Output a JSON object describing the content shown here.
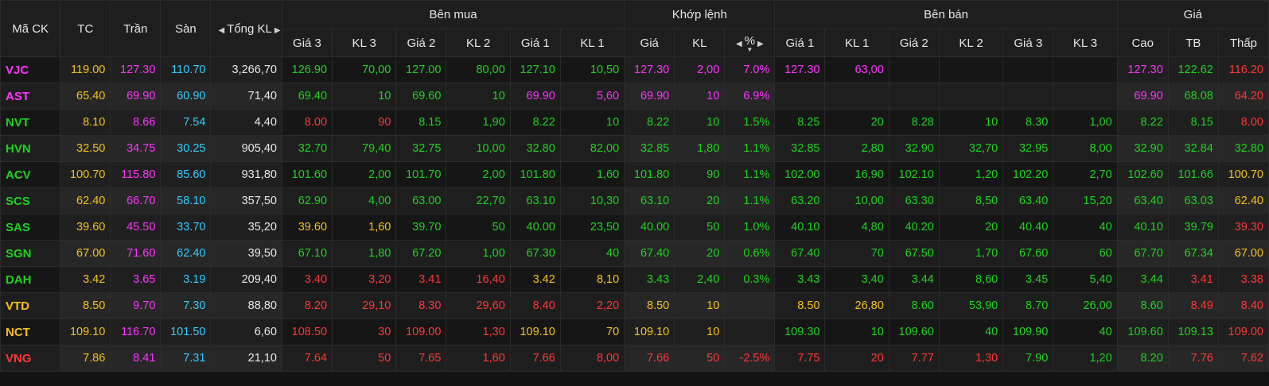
{
  "header": {
    "ma_ck": "Mã CK",
    "tc": "TC",
    "tran": "Trần",
    "san": "Sàn",
    "tong_kl": "Tổng KL",
    "ben_mua": "Bên mua",
    "khop_lenh": "Khớp lệnh",
    "ben_ban": "Bên bán",
    "gia_group": "Giá",
    "mua": [
      "Giá 3",
      "KL 3",
      "Giá 2",
      "KL 2",
      "Giá 1",
      "KL 1"
    ],
    "khop": [
      "Giá",
      "KL",
      "%"
    ],
    "ban": [
      "Giá 1",
      "KL 1",
      "Giá 2",
      "KL 2",
      "Giá 3",
      "KL 3"
    ],
    "gia": [
      "Cao",
      "TB",
      "Thấp"
    ]
  },
  "colors": {
    "up": "#1fd31f",
    "down": "#ff3737",
    "ref": "#f4c21b",
    "ceil": "#ff34ff",
    "floor": "#35cbff",
    "white": "#e8e8e8"
  },
  "rows": [
    {
      "sym": [
        "VJC",
        "ceil"
      ],
      "tc": [
        "119.00",
        "ref"
      ],
      "tran": [
        "127.30",
        "ceil"
      ],
      "san": [
        "110.70",
        "floor"
      ],
      "tkl": [
        "3,266,70",
        "white"
      ],
      "mua": [
        [
          "126.90",
          "up"
        ],
        [
          "70,00",
          "up"
        ],
        [
          "127.00",
          "up"
        ],
        [
          "80,00",
          "up"
        ],
        [
          "127.10",
          "up"
        ],
        [
          "10,50",
          "up"
        ]
      ],
      "khop": [
        [
          "127.30",
          "ceil"
        ],
        [
          "2,00",
          "ceil"
        ],
        [
          "7.0%",
          "ceil"
        ]
      ],
      "ban": [
        [
          "127.30",
          "ceil"
        ],
        [
          "63,00",
          "ceil"
        ],
        [
          "",
          ""
        ],
        [
          "",
          ""
        ],
        [
          "",
          ""
        ],
        [
          "",
          ""
        ]
      ],
      "gia": [
        [
          "127.30",
          "ceil"
        ],
        [
          "122.62",
          "up"
        ],
        [
          "116.20",
          "down"
        ]
      ]
    },
    {
      "sym": [
        "AST",
        "ceil"
      ],
      "tc": [
        "65.40",
        "ref"
      ],
      "tran": [
        "69.90",
        "ceil"
      ],
      "san": [
        "60.90",
        "floor"
      ],
      "tkl": [
        "71,40",
        "white"
      ],
      "mua": [
        [
          "69.40",
          "up"
        ],
        [
          "10",
          "up"
        ],
        [
          "69.60",
          "up"
        ],
        [
          "10",
          "up"
        ],
        [
          "69.90",
          "ceil"
        ],
        [
          "5,60",
          "ceil"
        ]
      ],
      "khop": [
        [
          "69.90",
          "ceil"
        ],
        [
          "10",
          "ceil"
        ],
        [
          "6.9%",
          "ceil"
        ]
      ],
      "ban": [
        [
          "",
          ""
        ],
        [
          "",
          ""
        ],
        [
          "",
          ""
        ],
        [
          "",
          ""
        ],
        [
          "",
          ""
        ],
        [
          "",
          ""
        ]
      ],
      "gia": [
        [
          "69.90",
          "ceil"
        ],
        [
          "68.08",
          "up"
        ],
        [
          "64.20",
          "down"
        ]
      ]
    },
    {
      "sym": [
        "NVT",
        "up"
      ],
      "tc": [
        "8.10",
        "ref"
      ],
      "tran": [
        "8.66",
        "ceil"
      ],
      "san": [
        "7.54",
        "floor"
      ],
      "tkl": [
        "4,40",
        "white"
      ],
      "mua": [
        [
          "8.00",
          "down"
        ],
        [
          "90",
          "down"
        ],
        [
          "8.15",
          "up"
        ],
        [
          "1,90",
          "up"
        ],
        [
          "8.22",
          "up"
        ],
        [
          "10",
          "up"
        ]
      ],
      "khop": [
        [
          "8.22",
          "up"
        ],
        [
          "10",
          "up"
        ],
        [
          "1.5%",
          "up"
        ]
      ],
      "ban": [
        [
          "8.25",
          "up"
        ],
        [
          "20",
          "up"
        ],
        [
          "8.28",
          "up"
        ],
        [
          "10",
          "up"
        ],
        [
          "8.30",
          "up"
        ],
        [
          "1,00",
          "up"
        ]
      ],
      "gia": [
        [
          "8.22",
          "up"
        ],
        [
          "8.15",
          "up"
        ],
        [
          "8.00",
          "down"
        ]
      ]
    },
    {
      "sym": [
        "HVN",
        "up"
      ],
      "tc": [
        "32.50",
        "ref"
      ],
      "tran": [
        "34.75",
        "ceil"
      ],
      "san": [
        "30.25",
        "floor"
      ],
      "tkl": [
        "905,40",
        "white"
      ],
      "mua": [
        [
          "32.70",
          "up"
        ],
        [
          "79,40",
          "up"
        ],
        [
          "32.75",
          "up"
        ],
        [
          "10,00",
          "up"
        ],
        [
          "32.80",
          "up"
        ],
        [
          "82,00",
          "up"
        ]
      ],
      "khop": [
        [
          "32.85",
          "up"
        ],
        [
          "1,80",
          "up"
        ],
        [
          "1.1%",
          "up"
        ]
      ],
      "ban": [
        [
          "32.85",
          "up"
        ],
        [
          "2,80",
          "up"
        ],
        [
          "32.90",
          "up"
        ],
        [
          "32,70",
          "up"
        ],
        [
          "32.95",
          "up"
        ],
        [
          "8,00",
          "up"
        ]
      ],
      "gia": [
        [
          "32.90",
          "up"
        ],
        [
          "32.84",
          "up"
        ],
        [
          "32.80",
          "up"
        ]
      ]
    },
    {
      "sym": [
        "ACV",
        "up"
      ],
      "tc": [
        "100.70",
        "ref"
      ],
      "tran": [
        "115.80",
        "ceil"
      ],
      "san": [
        "85.60",
        "floor"
      ],
      "tkl": [
        "931,80",
        "white"
      ],
      "mua": [
        [
          "101.60",
          "up"
        ],
        [
          "2,00",
          "up"
        ],
        [
          "101.70",
          "up"
        ],
        [
          "2,00",
          "up"
        ],
        [
          "101.80",
          "up"
        ],
        [
          "1,60",
          "up"
        ]
      ],
      "khop": [
        [
          "101.80",
          "up"
        ],
        [
          "90",
          "up"
        ],
        [
          "1.1%",
          "up"
        ]
      ],
      "ban": [
        [
          "102.00",
          "up"
        ],
        [
          "16,90",
          "up"
        ],
        [
          "102.10",
          "up"
        ],
        [
          "1,20",
          "up"
        ],
        [
          "102.20",
          "up"
        ],
        [
          "2,70",
          "up"
        ]
      ],
      "gia": [
        [
          "102.60",
          "up"
        ],
        [
          "101.66",
          "up"
        ],
        [
          "100.70",
          "ref"
        ]
      ]
    },
    {
      "sym": [
        "SCS",
        "up"
      ],
      "tc": [
        "62.40",
        "ref"
      ],
      "tran": [
        "66.70",
        "ceil"
      ],
      "san": [
        "58.10",
        "floor"
      ],
      "tkl": [
        "357,50",
        "white"
      ],
      "mua": [
        [
          "62.90",
          "up"
        ],
        [
          "4,00",
          "up"
        ],
        [
          "63.00",
          "up"
        ],
        [
          "22,70",
          "up"
        ],
        [
          "63.10",
          "up"
        ],
        [
          "10,30",
          "up"
        ]
      ],
      "khop": [
        [
          "63.10",
          "up"
        ],
        [
          "20",
          "up"
        ],
        [
          "1.1%",
          "up"
        ]
      ],
      "ban": [
        [
          "63.20",
          "up"
        ],
        [
          "10,00",
          "up"
        ],
        [
          "63.30",
          "up"
        ],
        [
          "8,50",
          "up"
        ],
        [
          "63.40",
          "up"
        ],
        [
          "15,20",
          "up"
        ]
      ],
      "gia": [
        [
          "63.40",
          "up"
        ],
        [
          "63.03",
          "up"
        ],
        [
          "62.40",
          "ref"
        ]
      ]
    },
    {
      "sym": [
        "SAS",
        "up"
      ],
      "tc": [
        "39.60",
        "ref"
      ],
      "tran": [
        "45.50",
        "ceil"
      ],
      "san": [
        "33.70",
        "floor"
      ],
      "tkl": [
        "35,20",
        "white"
      ],
      "mua": [
        [
          "39.60",
          "ref"
        ],
        [
          "1,60",
          "ref"
        ],
        [
          "39.70",
          "up"
        ],
        [
          "50",
          "up"
        ],
        [
          "40.00",
          "up"
        ],
        [
          "23,50",
          "up"
        ]
      ],
      "khop": [
        [
          "40.00",
          "up"
        ],
        [
          "50",
          "up"
        ],
        [
          "1.0%",
          "up"
        ]
      ],
      "ban": [
        [
          "40.10",
          "up"
        ],
        [
          "4,80",
          "up"
        ],
        [
          "40.20",
          "up"
        ],
        [
          "20",
          "up"
        ],
        [
          "40.40",
          "up"
        ],
        [
          "40",
          "up"
        ]
      ],
      "gia": [
        [
          "40.10",
          "up"
        ],
        [
          "39.79",
          "up"
        ],
        [
          "39.30",
          "down"
        ]
      ]
    },
    {
      "sym": [
        "SGN",
        "up"
      ],
      "tc": [
        "67.00",
        "ref"
      ],
      "tran": [
        "71.60",
        "ceil"
      ],
      "san": [
        "62.40",
        "floor"
      ],
      "tkl": [
        "39,50",
        "white"
      ],
      "mua": [
        [
          "67.10",
          "up"
        ],
        [
          "1,80",
          "up"
        ],
        [
          "67.20",
          "up"
        ],
        [
          "1,00",
          "up"
        ],
        [
          "67.30",
          "up"
        ],
        [
          "40",
          "up"
        ]
      ],
      "khop": [
        [
          "67.40",
          "up"
        ],
        [
          "20",
          "up"
        ],
        [
          "0.6%",
          "up"
        ]
      ],
      "ban": [
        [
          "67.40",
          "up"
        ],
        [
          "70",
          "up"
        ],
        [
          "67.50",
          "up"
        ],
        [
          "1,70",
          "up"
        ],
        [
          "67.60",
          "up"
        ],
        [
          "60",
          "up"
        ]
      ],
      "gia": [
        [
          "67.70",
          "up"
        ],
        [
          "67.34",
          "up"
        ],
        [
          "67.00",
          "ref"
        ]
      ]
    },
    {
      "sym": [
        "DAH",
        "up"
      ],
      "tc": [
        "3.42",
        "ref"
      ],
      "tran": [
        "3.65",
        "ceil"
      ],
      "san": [
        "3.19",
        "floor"
      ],
      "tkl": [
        "209,40",
        "white"
      ],
      "mua": [
        [
          "3.40",
          "down"
        ],
        [
          "3,20",
          "down"
        ],
        [
          "3.41",
          "down"
        ],
        [
          "16,40",
          "down"
        ],
        [
          "3.42",
          "ref"
        ],
        [
          "8,10",
          "ref"
        ]
      ],
      "khop": [
        [
          "3.43",
          "up"
        ],
        [
          "2,40",
          "up"
        ],
        [
          "0.3%",
          "up"
        ]
      ],
      "ban": [
        [
          "3.43",
          "up"
        ],
        [
          "3,40",
          "up"
        ],
        [
          "3.44",
          "up"
        ],
        [
          "8,60",
          "up"
        ],
        [
          "3.45",
          "up"
        ],
        [
          "5,40",
          "up"
        ]
      ],
      "gia": [
        [
          "3.44",
          "up"
        ],
        [
          "3.41",
          "down"
        ],
        [
          "3.38",
          "down"
        ]
      ]
    },
    {
      "sym": [
        "VTD",
        "ref"
      ],
      "tc": [
        "8.50",
        "ref"
      ],
      "tran": [
        "9.70",
        "ceil"
      ],
      "san": [
        "7.30",
        "floor"
      ],
      "tkl": [
        "88,80",
        "white"
      ],
      "mua": [
        [
          "8.20",
          "down"
        ],
        [
          "29,10",
          "down"
        ],
        [
          "8.30",
          "down"
        ],
        [
          "29,60",
          "down"
        ],
        [
          "8.40",
          "down"
        ],
        [
          "2,20",
          "down"
        ]
      ],
      "khop": [
        [
          "8.50",
          "ref"
        ],
        [
          "10",
          "ref"
        ],
        [
          "",
          ""
        ]
      ],
      "ban": [
        [
          "8.50",
          "ref"
        ],
        [
          "26,80",
          "ref"
        ],
        [
          "8.60",
          "up"
        ],
        [
          "53,90",
          "up"
        ],
        [
          "8.70",
          "up"
        ],
        [
          "26,00",
          "up"
        ]
      ],
      "gia": [
        [
          "8.60",
          "up"
        ],
        [
          "8.49",
          "down"
        ],
        [
          "8.40",
          "down"
        ]
      ]
    },
    {
      "sym": [
        "NCT",
        "ref"
      ],
      "tc": [
        "109.10",
        "ref"
      ],
      "tran": [
        "116.70",
        "ceil"
      ],
      "san": [
        "101.50",
        "floor"
      ],
      "tkl": [
        "6,60",
        "white"
      ],
      "mua": [
        [
          "108.50",
          "down"
        ],
        [
          "30",
          "down"
        ],
        [
          "109.00",
          "down"
        ],
        [
          "1,30",
          "down"
        ],
        [
          "109.10",
          "ref"
        ],
        [
          "70",
          "ref"
        ]
      ],
      "khop": [
        [
          "109.10",
          "ref"
        ],
        [
          "10",
          "ref"
        ],
        [
          "",
          ""
        ]
      ],
      "ban": [
        [
          "109.30",
          "up"
        ],
        [
          "10",
          "up"
        ],
        [
          "109.60",
          "up"
        ],
        [
          "40",
          "up"
        ],
        [
          "109.90",
          "up"
        ],
        [
          "40",
          "up"
        ]
      ],
      "gia": [
        [
          "109.60",
          "up"
        ],
        [
          "109.13",
          "up"
        ],
        [
          "109.00",
          "down"
        ]
      ]
    },
    {
      "sym": [
        "VNG",
        "down"
      ],
      "tc": [
        "7.86",
        "ref"
      ],
      "tran": [
        "8.41",
        "ceil"
      ],
      "san": [
        "7.31",
        "floor"
      ],
      "tkl": [
        "21,10",
        "white"
      ],
      "mua": [
        [
          "7.64",
          "down"
        ],
        [
          "50",
          "down"
        ],
        [
          "7.65",
          "down"
        ],
        [
          "1,60",
          "down"
        ],
        [
          "7.66",
          "down"
        ],
        [
          "8,00",
          "down"
        ]
      ],
      "khop": [
        [
          "7.66",
          "down"
        ],
        [
          "50",
          "down"
        ],
        [
          "-2.5%",
          "down"
        ]
      ],
      "ban": [
        [
          "7.75",
          "down"
        ],
        [
          "20",
          "down"
        ],
        [
          "7.77",
          "down"
        ],
        [
          "1,30",
          "down"
        ],
        [
          "7.90",
          "up"
        ],
        [
          "1,20",
          "up"
        ]
      ],
      "gia": [
        [
          "8.20",
          "up"
        ],
        [
          "7.76",
          "down"
        ],
        [
          "7.62",
          "down"
        ]
      ]
    }
  ]
}
